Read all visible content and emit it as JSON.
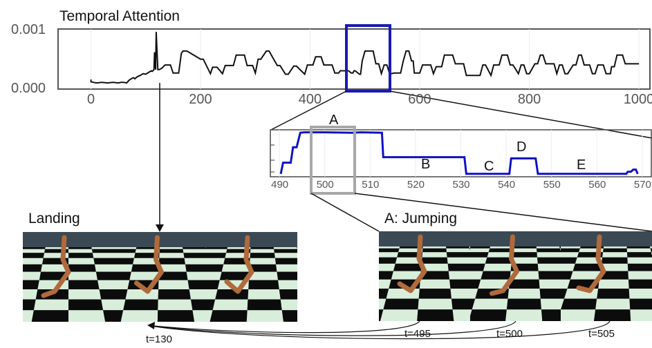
{
  "colors": {
    "main_line": "#111111",
    "zoom_line": "#1010c8",
    "highlight_box": "#1a1ab0",
    "grey_box": "#a8a8a8",
    "axis": "#555555",
    "tick_text": "#555555",
    "sky": "#3b4954",
    "floor_light": "#d8eedb",
    "floor_dark": "#0c0c0c",
    "robot": "#b06a3c"
  },
  "labels": {
    "title": "Temporal Attention",
    "landing": "Landing",
    "jumping": "A: Jumping",
    "t130": "t=130",
    "t495": "t=495",
    "t500": "t=500",
    "t505": "t=505"
  },
  "chart_data": [
    {
      "type": "line",
      "title": "Temporal Attention",
      "xlim": [
        -60,
        1020
      ],
      "ylim": [
        0,
        0.001
      ],
      "xticks": [
        "0",
        "200",
        "400",
        "600",
        "800",
        "1000"
      ],
      "yticks": [
        "0.000",
        "0.001"
      ],
      "grid": true,
      "highlight_x_range": [
        490,
        570
      ],
      "series": [
        {
          "x": [
            0,
            0,
            5,
            10,
            20,
            30,
            40,
            50,
            55,
            60,
            65,
            70,
            75,
            78,
            80,
            85,
            90,
            95,
            100,
            105,
            110,
            112,
            115,
            116,
            118,
            119,
            122,
            125,
            130,
            135,
            145,
            150,
            160,
            165,
            168,
            175,
            200,
            205,
            218,
            222,
            230,
            240,
            245,
            260,
            265,
            280,
            285,
            295,
            300,
            305,
            310,
            320,
            325,
            340,
            345,
            355,
            360,
            370,
            375,
            390,
            395,
            405,
            410,
            420,
            425,
            440,
            445,
            452,
            455,
            470,
            475,
            478,
            480,
            482,
            490,
            492,
            495,
            500,
            515,
            520,
            525,
            530,
            535,
            540,
            545,
            548,
            553,
            565,
            570,
            575,
            580,
            585,
            588,
            590,
            600,
            605,
            620,
            625,
            630,
            640,
            645,
            660,
            665,
            680,
            685,
            710,
            715,
            720,
            730,
            735,
            745,
            750,
            760,
            765,
            770,
            780,
            785,
            790,
            795,
            800,
            810,
            815,
            820,
            825,
            830,
            845,
            850,
            855,
            860,
            865,
            870,
            880,
            885,
            890,
            895,
            900,
            910,
            915,
            920,
            925,
            935,
            940,
            948,
            950,
            955,
            960,
            970,
            975,
            1000
          ],
          "values": [
            0.00013,
            9e-05,
            8e-05,
            7e-05,
            8e-05,
            7e-05,
            8e-05,
            7e-05,
            8e-05,
            8e-05,
            7e-05,
            0.00012,
            0.00015,
            0.00016,
            0.00014,
            0.00018,
            0.0002,
            0.00023,
            0.00022,
            0.00025,
            0.00028,
            0.00027,
            0.0003,
            0.0006,
            0.0003,
            0.00095,
            0.0003,
            0.0003,
            0.00033,
            0.00038,
            0.00038,
            0.00024,
            0.00024,
            0.00058,
            0.00062,
            0.00062,
            0.00048,
            0.00048,
            0.00023,
            0.00034,
            0.00034,
            0.00023,
            0.00037,
            0.00037,
            0.00055,
            0.00055,
            0.00037,
            0.00037,
            0.00024,
            0.00048,
            0.00048,
            0.00062,
            0.00062,
            0.00037,
            0.00037,
            0.00022,
            0.00022,
            0.00036,
            0.00036,
            0.00022,
            0.00038,
            0.00038,
            0.00052,
            0.00052,
            0.00038,
            0.00038,
            0.00024,
            0.00024,
            0.00028,
            0.00028,
            0.00024,
            0.00024,
            0.00028,
            0.00028,
            0.00022,
            0.00022,
            0.00045,
            0.00062,
            0.00062,
            0.0004,
            0.0004,
            0.00023,
            0.00038,
            0.00038,
            0.00023,
            0.00023,
            0.00024,
            0.00024,
            0.00045,
            0.00062,
            0.00062,
            0.00045,
            0.00045,
            0.00024,
            0.00024,
            0.00038,
            0.00038,
            0.00023,
            0.00035,
            0.00035,
            0.00055,
            0.00055,
            0.0004,
            0.0004,
            0.0002,
            0.0002,
            0.00038,
            0.00038,
            0.0002,
            0.00038,
            0.00038,
            0.00055,
            0.00055,
            0.00038,
            0.00038,
            0.00023,
            0.00038,
            0.00038,
            0.00023,
            0.00023,
            0.0004,
            0.0004,
            0.00055,
            0.00055,
            0.0004,
            0.0004,
            0.00023,
            0.00038,
            0.00038,
            0.00023,
            0.00023,
            0.00038,
            0.00038,
            0.00055,
            0.00055,
            0.00038,
            0.00038,
            0.00023,
            0.00023,
            0.00038,
            0.00038,
            0.00023,
            0.00023,
            0.00035,
            0.00035,
            0.00055,
            0.00055,
            0.0004,
            0.0004
          ]
        }
      ]
    },
    {
      "type": "line",
      "xlim": [
        488,
        572
      ],
      "ylim": [
        0,
        1
      ],
      "xticks": [
        "490",
        "500",
        "510",
        "520",
        "530",
        "540",
        "550",
        "560",
        "570"
      ],
      "grid": true,
      "annotations": [
        "A",
        "B",
        "C",
        "D",
        "E"
      ],
      "highlight_x_range": [
        494,
        505
      ],
      "series": [
        {
          "x": [
            490.3,
            490.8,
            491.2,
            492.5,
            493,
            493.8,
            494.6,
            495.5,
            500,
            506,
            508,
            512.6,
            512.9,
            530.8,
            531.2,
            540.7,
            541.1,
            546.5,
            547,
            566.5,
            566.8,
            567.5,
            568,
            568.6,
            569
          ],
          "values": [
            0.02,
            0.28,
            0.28,
            0.28,
            0.64,
            0.64,
            0.98,
            0.99,
            0.99,
            0.98,
            0.99,
            0.98,
            0.41,
            0.41,
            0.02,
            0.02,
            0.38,
            0.38,
            0.02,
            0.02,
            0.07,
            0.07,
            0.12,
            0.12,
            0.02
          ]
        }
      ]
    }
  ]
}
